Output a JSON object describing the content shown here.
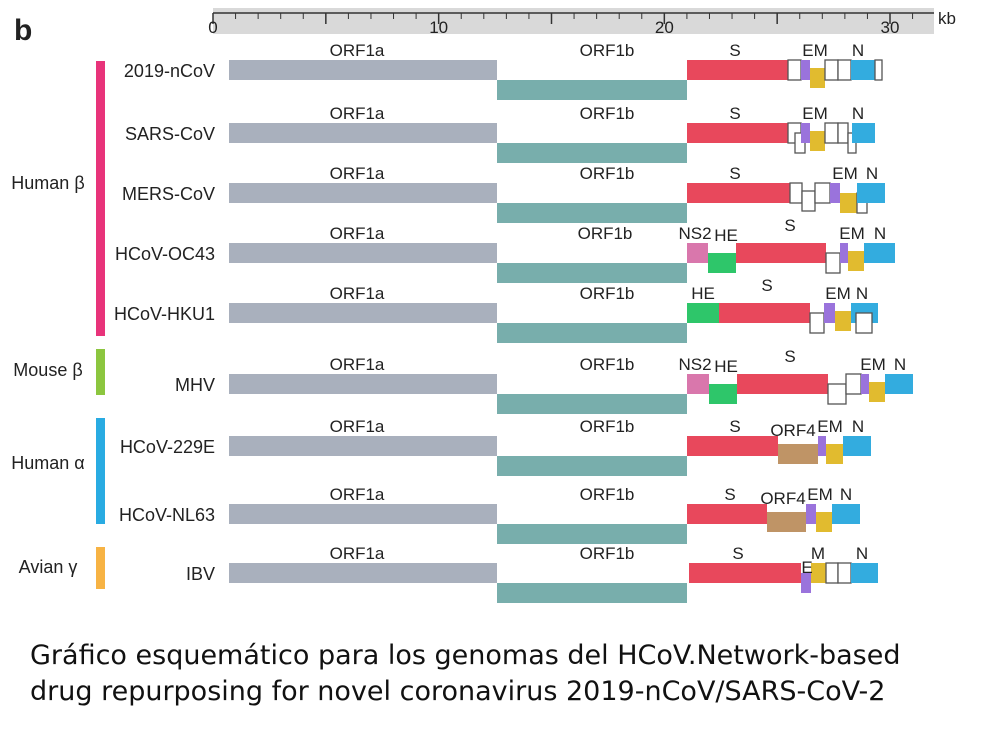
{
  "panel_letter": "b",
  "scale": {
    "unit_label": "kb",
    "ticks": [
      {
        "value": 0,
        "label": "0"
      },
      {
        "value": 10,
        "label": "10"
      },
      {
        "value": 20,
        "label": "20"
      },
      {
        "value": 30,
        "label": "30"
      }
    ]
  },
  "groups": [
    {
      "label": "Human β",
      "color": "#e8337a",
      "genomes": [
        "2019-nCoV",
        "SARS-CoV",
        "MERS-CoV",
        "HCoV-OC43",
        "HCoV-HKU1"
      ]
    },
    {
      "label": "Mouse β",
      "color": "#8cc63f",
      "genomes": [
        "MHV"
      ]
    },
    {
      "label": "Human α",
      "color": "#29abe2",
      "genomes": [
        "HCoV-229E",
        "HCoV-NL63"
      ]
    },
    {
      "label": "Avian γ",
      "color": "#f7b344",
      "genomes": [
        "IBV"
      ]
    }
  ],
  "gene_colors": {
    "ORF1a": "#a9b0bd",
    "ORF1b": "#78aeac",
    "S": "#e8485c",
    "E": "#9a73dc",
    "M": "#e1bb2f",
    "N": "#33acdf",
    "HE": "#2ec66a",
    "NS2": "#d977ac",
    "ORF4": "#bf9466",
    "accessory": "#ffffff"
  },
  "genomes": [
    {
      "name": "2019-nCoV",
      "labels": [
        "ORF1a",
        "ORF1b",
        "S",
        "EM",
        "N"
      ]
    },
    {
      "name": "SARS-CoV",
      "labels": [
        "ORF1a",
        "ORF1b",
        "S",
        "EM",
        "N"
      ]
    },
    {
      "name": "MERS-CoV",
      "labels": [
        "ORF1a",
        "ORF1b",
        "S",
        "EM",
        "N"
      ]
    },
    {
      "name": "HCoV-OC43",
      "labels": [
        "ORF1a",
        "ORF1b",
        "NS2",
        "HE",
        "S",
        "EM",
        "N"
      ]
    },
    {
      "name": "HCoV-HKU1",
      "labels": [
        "ORF1a",
        "ORF1b",
        "HE",
        "S",
        "EM",
        "N"
      ]
    },
    {
      "name": "MHV",
      "labels": [
        "ORF1a",
        "ORF1b",
        "NS2",
        "HE",
        "S",
        "EM",
        "N"
      ]
    },
    {
      "name": "HCoV-229E",
      "labels": [
        "ORF1a",
        "ORF1b",
        "S",
        "ORF4",
        "EM",
        "N"
      ]
    },
    {
      "name": "HCoV-NL63",
      "labels": [
        "ORF1a",
        "ORF1b",
        "S",
        "ORF4",
        "EM",
        "N"
      ]
    },
    {
      "name": "IBV",
      "labels": [
        "ORF1a",
        "ORF1b",
        "S",
        "E",
        "M",
        "N"
      ]
    }
  ],
  "caption": "Gráfico esquemático para los genomas del HCoV.Network-based drug repurposing for novel coronavirus 2019-nCoV/SARS-CoV-2"
}
